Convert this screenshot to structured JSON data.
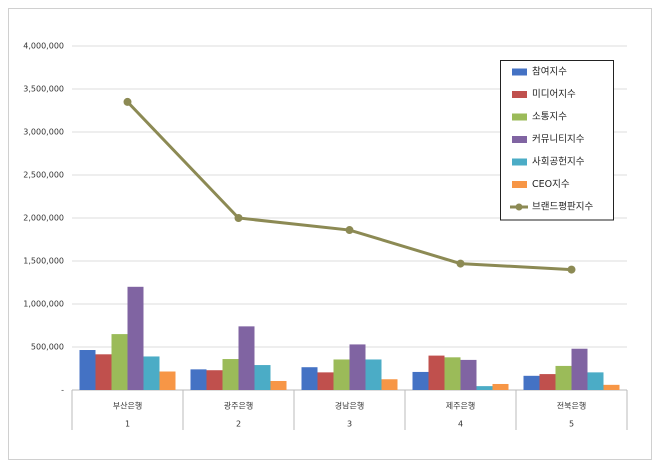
{
  "chart_data": {
    "type": "bar",
    "categories": [
      "부산은행",
      "광주은행",
      "경남은행",
      "제주은행",
      "전북은행"
    ],
    "category_numbers": [
      "1",
      "2",
      "3",
      "4",
      "5"
    ],
    "series": [
      {
        "name": "참여지수",
        "color": "#4472c4",
        "values": [
          465000,
          240000,
          265000,
          210000,
          165000
        ]
      },
      {
        "name": "미디어지수",
        "color": "#c0504d",
        "values": [
          415000,
          230000,
          205000,
          400000,
          185000
        ]
      },
      {
        "name": "소통지수",
        "color": "#9bbb59",
        "values": [
          650000,
          360000,
          355000,
          380000,
          280000
        ]
      },
      {
        "name": "커뮤니티지수",
        "color": "#8064a2",
        "values": [
          1200000,
          740000,
          530000,
          350000,
          480000
        ]
      },
      {
        "name": "사회공헌지수",
        "color": "#4bacc6",
        "values": [
          390000,
          290000,
          355000,
          45000,
          205000
        ]
      },
      {
        "name": "CEO지수",
        "color": "#f79646",
        "values": [
          215000,
          105000,
          125000,
          70000,
          60000
        ]
      },
      {
        "name": "브랜드평판지수",
        "color": "#8c8a54",
        "type": "line",
        "values": [
          3350000,
          2000000,
          1860000,
          1470000,
          1400000
        ]
      }
    ],
    "ylim": [
      0,
      4000000
    ],
    "yticks": [
      {
        "value": 0,
        "label": "-"
      },
      {
        "value": 500000,
        "label": "500,000"
      },
      {
        "value": 1000000,
        "label": "1,000,000"
      },
      {
        "value": 1500000,
        "label": "1,500,000"
      },
      {
        "value": 2000000,
        "label": "2,000,000"
      },
      {
        "value": 2500000,
        "label": "2,500,000"
      },
      {
        "value": 3000000,
        "label": "3,000,000"
      },
      {
        "value": 3500000,
        "label": "3,500,000"
      },
      {
        "value": 4000000,
        "label": "4,000,000"
      }
    ],
    "grid": true,
    "legend": "upper right"
  }
}
